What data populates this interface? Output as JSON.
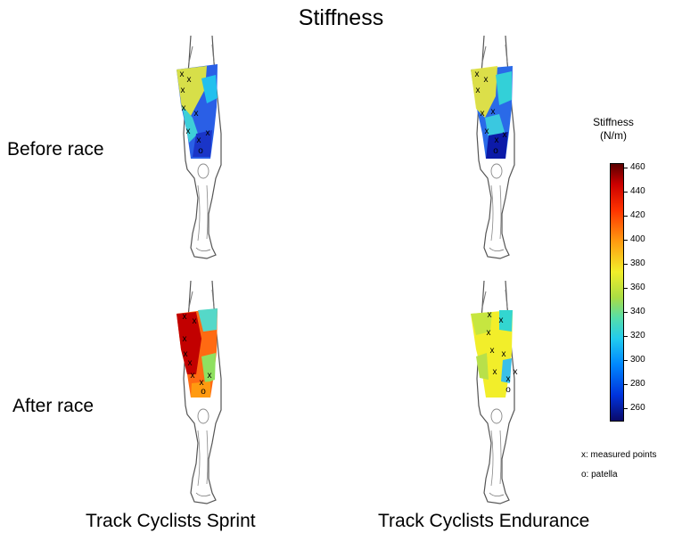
{
  "title": "Stiffness",
  "rows": {
    "before": "Before race",
    "after": "After race"
  },
  "columns": {
    "sprint": "Track Cyclists Sprint",
    "endurance": "Track Cyclists Endurance"
  },
  "colorbar": {
    "title_line1": "Stiffness",
    "title_line2": "(N/m)",
    "min": 250,
    "max": 462,
    "ticks": [
      "460",
      "440",
      "420",
      "400",
      "380",
      "360",
      "340",
      "320",
      "300",
      "280",
      "260"
    ],
    "colors": [
      "#0a0a6a",
      "#0033dd",
      "#0088ff",
      "#22ccee",
      "#55ddaa",
      "#aadd44",
      "#f2ee2a",
      "#ff9a10",
      "#ff3300",
      "#cc0000",
      "#5a0000"
    ]
  },
  "legend": {
    "measured": "x: measured points",
    "patella": "o: patella"
  },
  "markers": {
    "measured": "x",
    "patella": "o"
  }
}
